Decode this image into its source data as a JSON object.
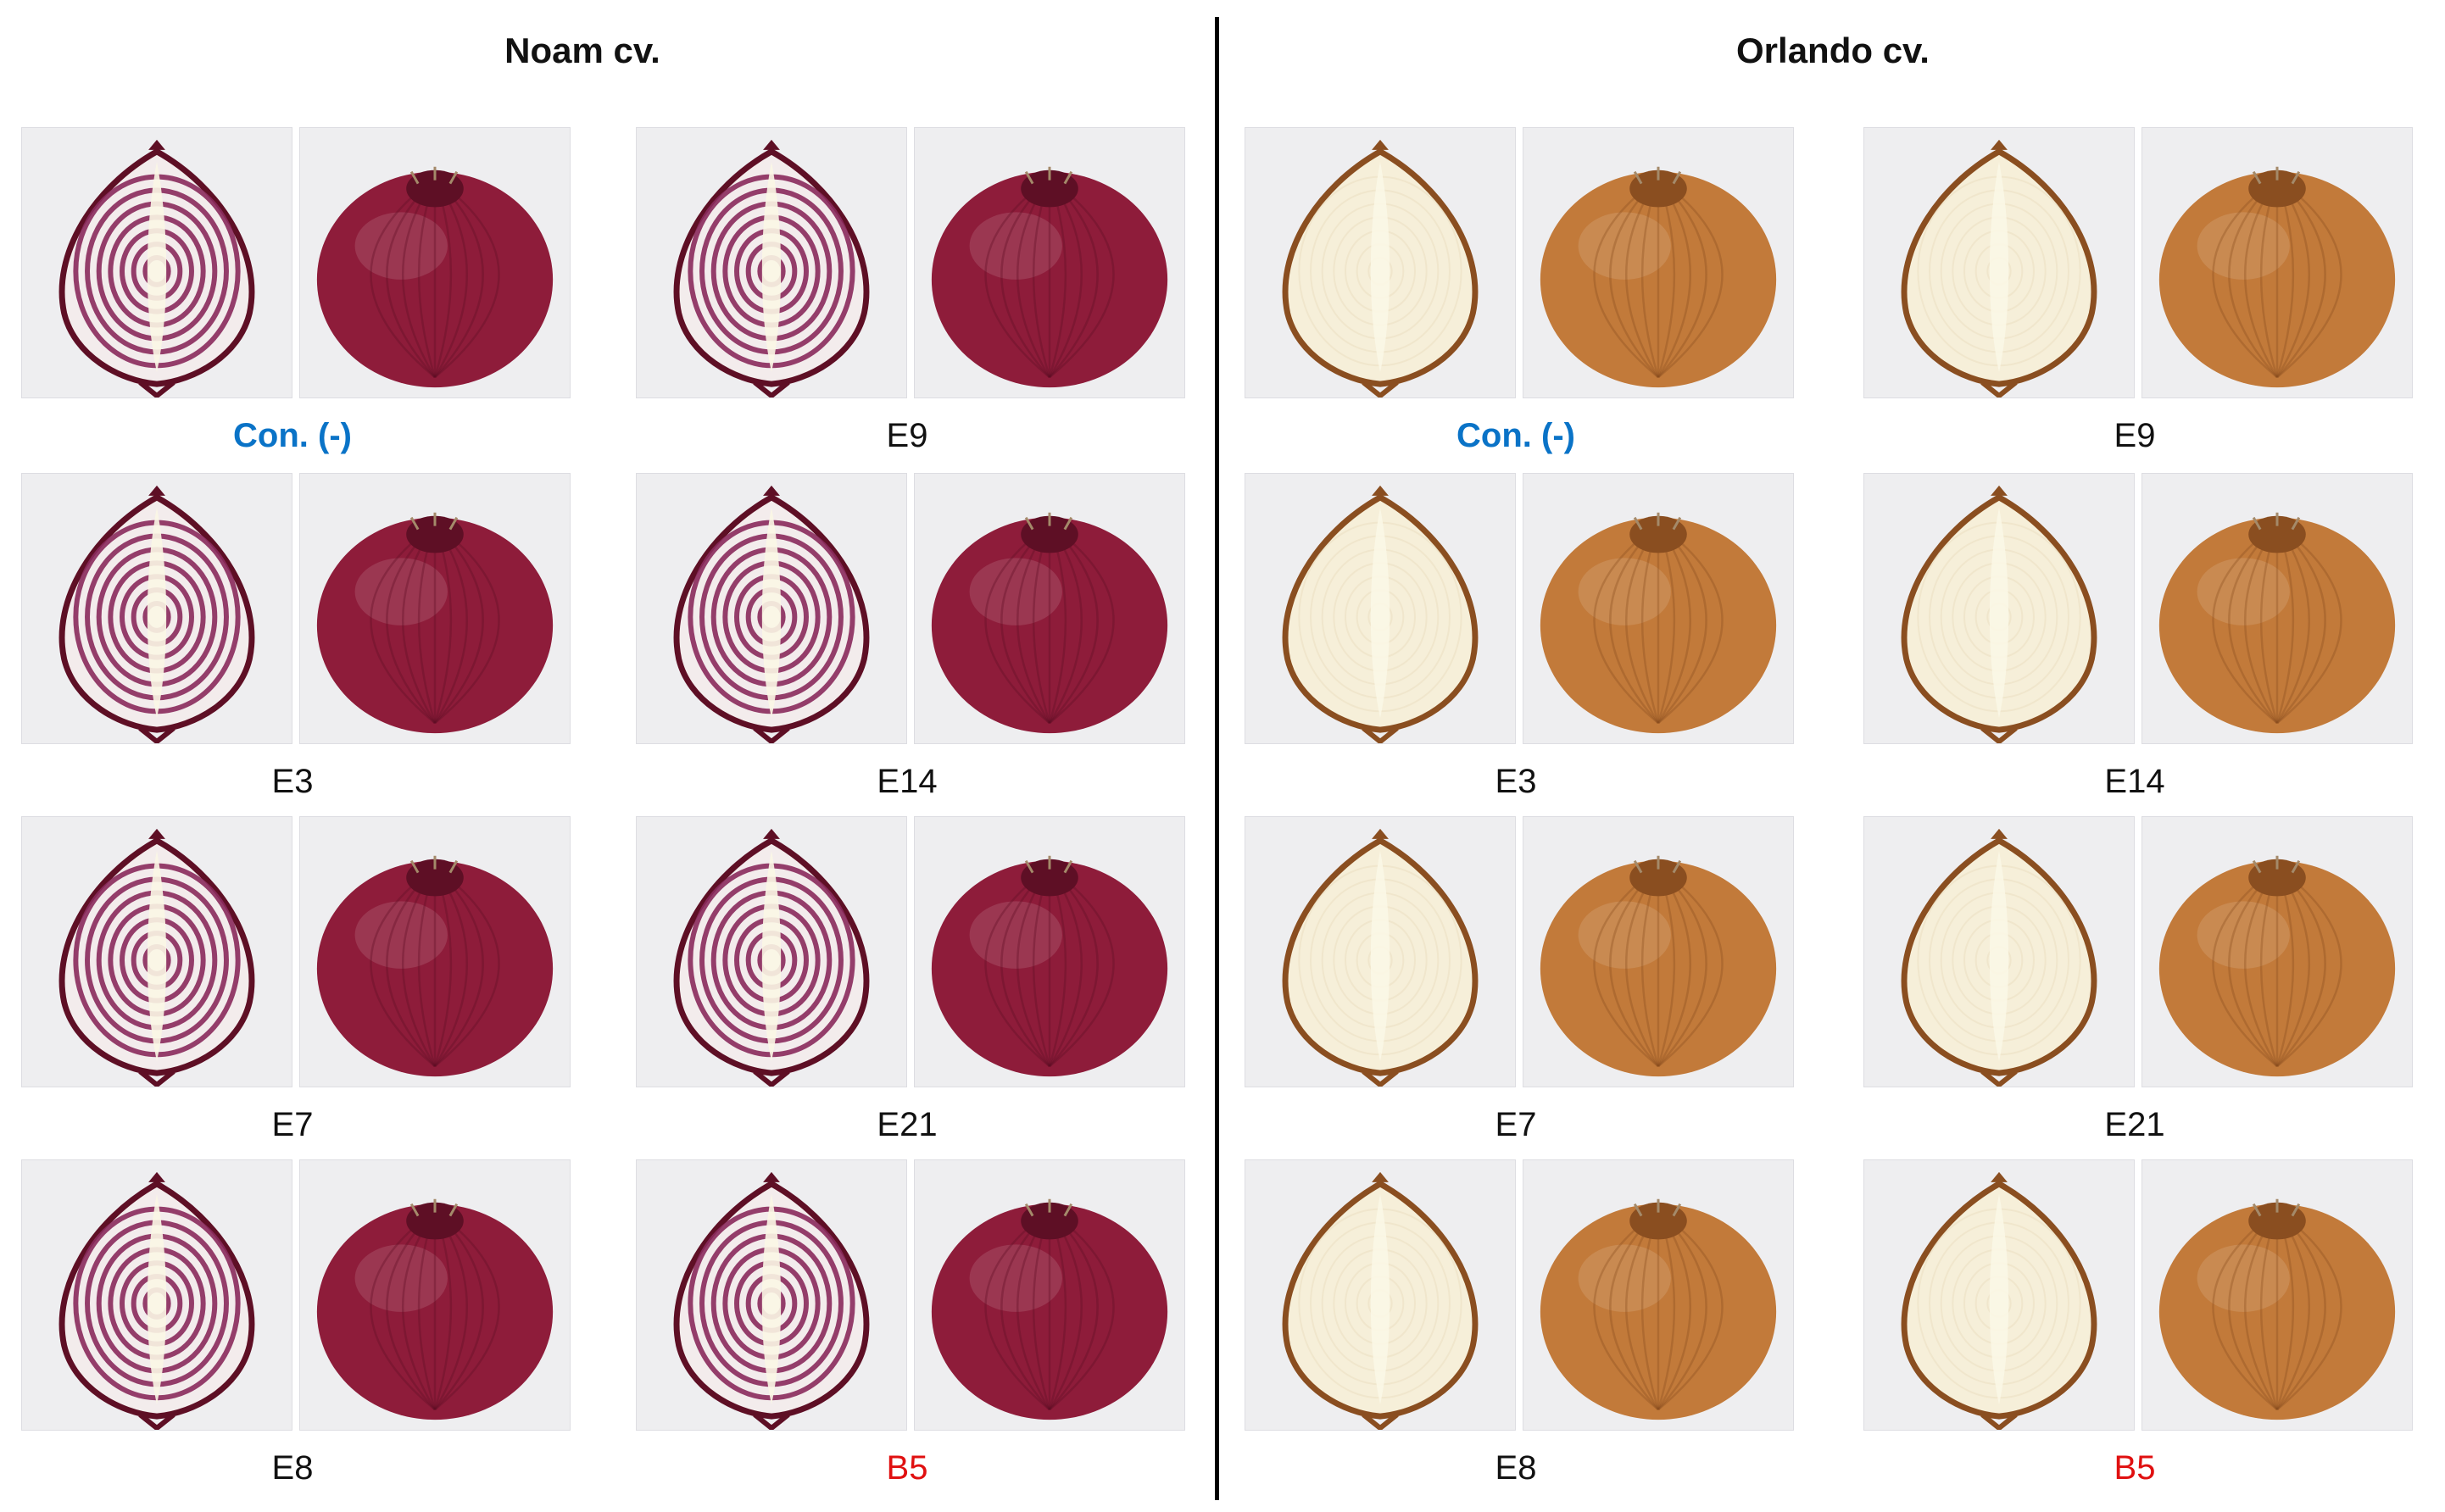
{
  "panels": [
    {
      "title": "Noam cv.",
      "variety": "red",
      "colors": {
        "skin": "#8e1c3a",
        "skin_dark": "#5e0f25",
        "flesh": "#f3ecec",
        "ring": "#8a2a5c"
      },
      "items": [
        {
          "label": "Con. (-)",
          "style": "control"
        },
        {
          "label": "E9",
          "style": "normal"
        },
        {
          "label": "E3",
          "style": "normal"
        },
        {
          "label": "E14",
          "style": "normal"
        },
        {
          "label": "E7",
          "style": "normal"
        },
        {
          "label": "E21",
          "style": "normal"
        },
        {
          "label": "E8",
          "style": "normal"
        },
        {
          "label": "B5",
          "style": "treat"
        }
      ]
    },
    {
      "title": "Orlando cv.",
      "variety": "yellow",
      "colors": {
        "skin": "#c27a3a",
        "skin_dark": "#8a4e20",
        "flesh": "#f6efd9",
        "ring": "#e8dcbc"
      },
      "items": [
        {
          "label": "Con. (-)",
          "style": "control"
        },
        {
          "label": "E9",
          "style": "normal"
        },
        {
          "label": "E3",
          "style": "normal"
        },
        {
          "label": "E14",
          "style": "normal"
        },
        {
          "label": "E7",
          "style": "normal"
        },
        {
          "label": "E21",
          "style": "normal"
        },
        {
          "label": "E8",
          "style": "normal"
        },
        {
          "label": "B5",
          "style": "treat"
        }
      ]
    }
  ]
}
